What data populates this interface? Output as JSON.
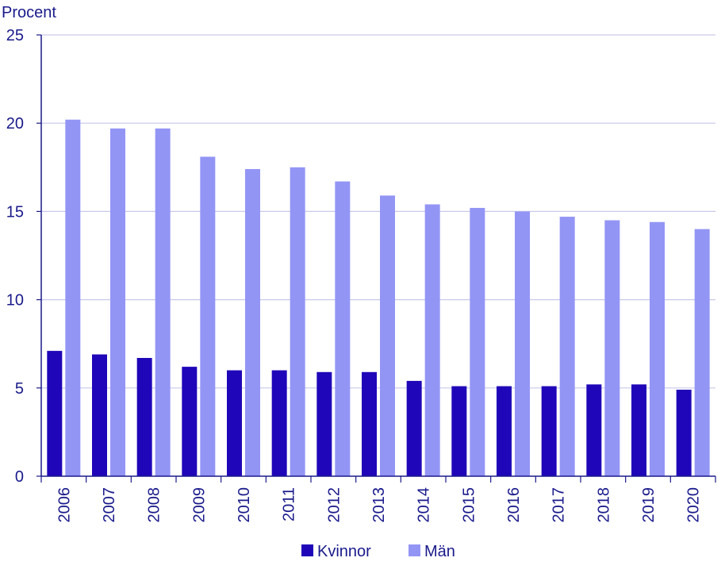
{
  "chart_data": {
    "type": "bar",
    "title": "",
    "ylabel": "Procent",
    "xlabel": "",
    "ylim": [
      0,
      25
    ],
    "yticks": [
      0,
      5,
      10,
      15,
      20,
      25
    ],
    "grid": true,
    "legend_position": "bottom",
    "categories": [
      "2006",
      "2007",
      "2008",
      "2009",
      "2010",
      "2011",
      "2012",
      "2013",
      "2014",
      "2015",
      "2016",
      "2017",
      "2018",
      "2019",
      "2020"
    ],
    "series": [
      {
        "name": "Kvinnor",
        "color": "#1f06b8",
        "values": [
          7.1,
          6.9,
          6.7,
          6.2,
          6.0,
          6.0,
          5.9,
          5.9,
          5.4,
          5.1,
          5.1,
          5.1,
          5.2,
          5.2,
          4.9
        ]
      },
      {
        "name": "Män",
        "color": "#9395f5",
        "values": [
          20.2,
          19.7,
          19.7,
          18.1,
          17.4,
          17.5,
          16.7,
          15.9,
          15.4,
          15.2,
          15.0,
          14.7,
          14.5,
          14.4,
          14.0
        ]
      }
    ]
  }
}
